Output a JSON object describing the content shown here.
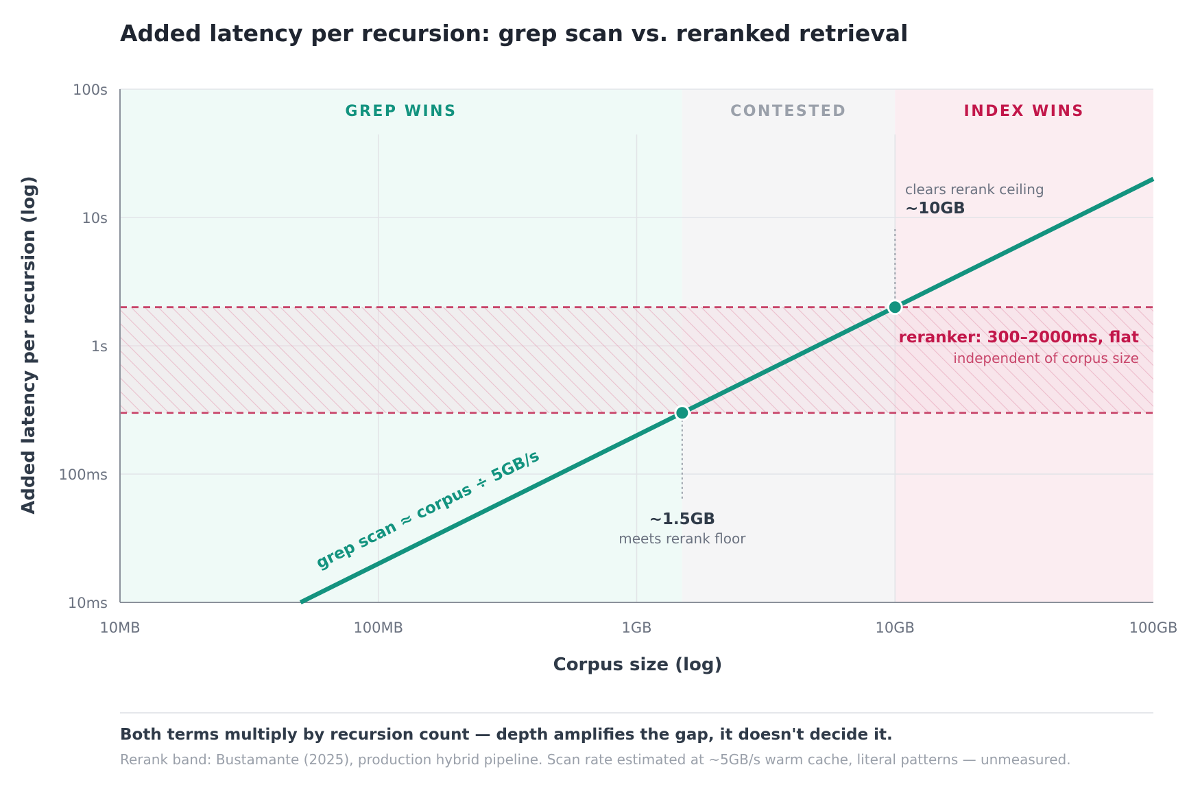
{
  "colors": {
    "grep": "#13937f",
    "index": "#c2174a",
    "contested": "#9aa0aa",
    "rerank_band_line": "#c8456a",
    "text_dark": "#2f3a48",
    "text_muted": "#6b7280"
  },
  "chart_data": {
    "type": "line",
    "title": "Added latency per recursion: grep scan vs. reranked retrieval",
    "xlabel": "Corpus size (log)",
    "ylabel": "Added latency per recursion (log)",
    "x_scale": "log",
    "y_scale": "log",
    "xlim_bytes": [
      10000000,
      100000000000
    ],
    "ylim_seconds": [
      0.01,
      100
    ],
    "x_ticks": [
      {
        "value": 10000000,
        "label": "10MB"
      },
      {
        "value": 100000000,
        "label": "100MB"
      },
      {
        "value": 1000000000,
        "label": "1GB"
      },
      {
        "value": 10000000000,
        "label": "10GB"
      },
      {
        "value": 100000000000,
        "label": "100GB"
      }
    ],
    "y_ticks": [
      {
        "value": 0.01,
        "label": "10ms"
      },
      {
        "value": 0.1,
        "label": "100ms"
      },
      {
        "value": 1,
        "label": "1s"
      },
      {
        "value": 10,
        "label": "10s"
      },
      {
        "value": 100,
        "label": "100s"
      }
    ],
    "grid": true,
    "regions": [
      {
        "label": "GREP WINS",
        "x_from": 10000000,
        "x_to": 1500000000,
        "color": "#13937f"
      },
      {
        "label": "CONTESTED",
        "x_from": 1500000000,
        "x_to": 10000000000,
        "color": "#9aa0aa"
      },
      {
        "label": "INDEX WINS",
        "x_from": 10000000000,
        "x_to": 100000000000,
        "color": "#c2174a"
      }
    ],
    "series": [
      {
        "name": "grep scan ≈ corpus ÷ 5GB/s",
        "x": [
          50000000,
          100000000000
        ],
        "y": [
          0.01,
          20
        ]
      }
    ],
    "band": {
      "y_from": 0.3,
      "y_to": 2.0,
      "label": "reranker: 300–2000ms, flat",
      "sublabel": "independent of corpus size"
    },
    "points": [
      {
        "x": 1500000000,
        "y": 0.3,
        "label": "~1.5GB",
        "sublabel": "meets rerank floor"
      },
      {
        "x": 10000000000,
        "y": 2.0,
        "label": "~10GB",
        "sublabel": "clears rerank ceiling"
      }
    ]
  },
  "footer": {
    "headline": "Both terms multiply by recursion count — depth amplifies the gap, it doesn't decide it.",
    "note": "Rerank band: Bustamante (2025), production hybrid pipeline. Scan rate estimated at ~5GB/s warm cache, literal patterns — unmeasured."
  }
}
